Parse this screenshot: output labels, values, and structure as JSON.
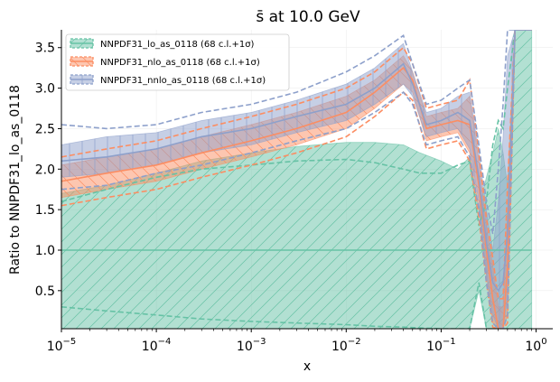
{
  "chart_data": {
    "type": "area",
    "title": "s̄ at 10.0 GeV",
    "xlabel": "x",
    "ylabel": "Ratio to NNPDF31_lo_as_0118",
    "xscale": "log",
    "xlim": [
      1e-05,
      1.5
    ],
    "ylim": [
      0.03,
      3.72
    ],
    "grid": true,
    "legend_position": "top-left",
    "x_ticks": [
      {
        "value": 1e-05,
        "base": "10",
        "exp": "−5"
      },
      {
        "value": 0.0001,
        "base": "10",
        "exp": "−4"
      },
      {
        "value": 0.001,
        "base": "10",
        "exp": "−3"
      },
      {
        "value": 0.01,
        "base": "10",
        "exp": "−2"
      },
      {
        "value": 0.1,
        "base": "10",
        "exp": "−1"
      },
      {
        "value": 1,
        "base": "10",
        "exp": "0"
      }
    ],
    "y_ticks": [
      {
        "value": 0.5,
        "label": "0.5"
      },
      {
        "value": 1.0,
        "label": "1.0"
      },
      {
        "value": 1.5,
        "label": "1.5"
      },
      {
        "value": 2.0,
        "label": "2.0"
      },
      {
        "value": 2.5,
        "label": "2.5"
      },
      {
        "value": 3.0,
        "label": "3.0"
      },
      {
        "value": 3.5,
        "label": "3.5"
      }
    ],
    "series": [
      {
        "name": "NNPDF31_lo_as_0118 (68 c.l.+1σ)",
        "color": "#66c2a5",
        "hatch": "/",
        "x": [
          1e-05,
          3e-05,
          0.0001,
          0.0003,
          0.001,
          0.003,
          0.01,
          0.02,
          0.04,
          0.06,
          0.1,
          0.15,
          0.2,
          0.25,
          0.3,
          0.35,
          0.4,
          0.45,
          0.5,
          0.6,
          0.7,
          0.8,
          0.9
        ],
        "central": [
          1.0,
          1.0,
          1.0,
          1.0,
          1.0,
          1.0,
          1.0,
          1.0,
          1.0,
          1.0,
          1.0,
          1.0,
          1.0,
          1.0,
          1.0,
          1.0,
          1.0,
          1.0,
          1.0,
          1.0,
          1.0,
          1.0,
          1.0
        ],
        "band_upper": [
          1.7,
          1.8,
          1.95,
          2.1,
          2.2,
          2.28,
          2.33,
          2.33,
          2.3,
          2.2,
          2.1,
          2.0,
          2.15,
          1.5,
          1.9,
          2.2,
          2.5,
          2.2,
          1.8,
          3.72,
          3.72,
          3.72,
          3.72
        ],
        "band_lower": [
          0.03,
          0.03,
          0.03,
          0.03,
          0.03,
          0.03,
          0.03,
          0.03,
          0.03,
          0.03,
          0.03,
          0.03,
          0.03,
          0.5,
          0.03,
          0.03,
          0.03,
          0.03,
          0.03,
          0.03,
          0.03,
          0.03,
          0.03
        ],
        "sigma_upper": [
          1.6,
          1.75,
          1.9,
          2.0,
          2.05,
          2.1,
          2.12,
          2.08,
          2.0,
          1.95,
          1.95,
          2.05,
          2.1,
          1.3,
          1.6,
          2.3,
          2.6,
          2.5,
          3.0,
          3.72,
          3.72,
          3.72,
          3.72
        ],
        "sigma_lower": [
          0.3,
          0.25,
          0.2,
          0.15,
          0.12,
          0.1,
          0.08,
          0.06,
          0.05,
          0.04,
          0.03,
          0.03,
          0.03,
          0.6,
          0.03,
          0.03,
          0.03,
          0.03,
          0.03,
          0.03,
          0.03,
          0.03,
          0.03
        ]
      },
      {
        "name": "NNPDF31_nlo_as_0118 (68 c.l.+1σ)",
        "color": "#fc8d62",
        "hatch": "\\",
        "x": [
          1e-05,
          3e-05,
          0.0001,
          0.0003,
          0.001,
          0.003,
          0.01,
          0.02,
          0.04,
          0.05,
          0.07,
          0.1,
          0.15,
          0.2,
          0.25,
          0.3,
          0.35,
          0.4,
          0.45,
          0.5,
          0.6,
          0.7,
          0.8,
          0.9
        ],
        "central": [
          1.85,
          1.95,
          2.05,
          2.2,
          2.35,
          2.5,
          2.7,
          2.95,
          3.25,
          3.1,
          2.5,
          2.55,
          2.6,
          2.55,
          1.8,
          1.0,
          0.4,
          0.03,
          0.03,
          0.8,
          3.72,
          3.72,
          3.72,
          3.72
        ],
        "band_upper": [
          2.05,
          2.15,
          2.25,
          2.4,
          2.55,
          2.7,
          2.9,
          3.1,
          3.4,
          3.2,
          2.65,
          2.7,
          2.75,
          2.9,
          2.1,
          1.3,
          0.8,
          0.3,
          0.3,
          1.5,
          3.72,
          3.72,
          3.72,
          3.72
        ],
        "band_lower": [
          1.65,
          1.75,
          1.85,
          2.0,
          2.15,
          2.3,
          2.5,
          2.75,
          3.05,
          2.95,
          2.35,
          2.4,
          2.45,
          2.2,
          1.5,
          0.7,
          0.1,
          0.03,
          0.03,
          0.2,
          3.72,
          3.72,
          3.72,
          3.72
        ],
        "sigma_upper": [
          2.15,
          2.25,
          2.35,
          2.5,
          2.65,
          2.8,
          3.0,
          3.2,
          3.5,
          3.3,
          2.75,
          2.8,
          2.85,
          3.1,
          2.2,
          1.4,
          0.9,
          0.4,
          0.4,
          1.8,
          3.72,
          3.72,
          3.72,
          3.72
        ],
        "sigma_lower": [
          1.55,
          1.65,
          1.75,
          1.9,
          2.05,
          2.2,
          2.4,
          2.65,
          2.95,
          2.85,
          2.25,
          2.3,
          2.35,
          2.1,
          1.4,
          0.6,
          0.05,
          0.03,
          0.03,
          0.1,
          3.72,
          3.72,
          3.72,
          3.72
        ]
      },
      {
        "name": "NNPDF31_nnlo_as_0118 (68 c.l.+1σ)",
        "color": "#8da0cb",
        "hatch": "|",
        "x": [
          1e-05,
          3e-05,
          0.0001,
          0.0003,
          0.001,
          0.003,
          0.01,
          0.02,
          0.04,
          0.05,
          0.07,
          0.1,
          0.15,
          0.2,
          0.25,
          0.3,
          0.35,
          0.4,
          0.45,
          0.5,
          0.6,
          0.7,
          0.8,
          0.9
        ],
        "central": [
          2.1,
          2.15,
          2.25,
          2.4,
          2.5,
          2.65,
          2.8,
          3.0,
          3.3,
          3.05,
          2.55,
          2.6,
          2.7,
          2.6,
          1.9,
          1.1,
          0.6,
          0.5,
          0.6,
          1.2,
          3.72,
          3.72,
          3.72,
          3.72
        ],
        "band_upper": [
          2.3,
          2.4,
          2.45,
          2.6,
          2.7,
          2.85,
          3.05,
          3.25,
          3.55,
          3.2,
          2.7,
          2.75,
          2.9,
          2.95,
          2.2,
          1.5,
          1.0,
          1.6,
          2.4,
          3.4,
          3.72,
          3.72,
          3.72,
          3.72
        ],
        "band_lower": [
          1.9,
          1.95,
          2.05,
          2.2,
          2.3,
          2.45,
          2.6,
          2.8,
          3.05,
          2.9,
          2.4,
          2.45,
          2.5,
          2.25,
          1.6,
          0.7,
          0.2,
          0.03,
          0.03,
          0.4,
          3.72,
          3.72,
          3.72,
          3.72
        ],
        "sigma_upper": [
          2.55,
          2.5,
          2.55,
          2.7,
          2.8,
          2.95,
          3.2,
          3.4,
          3.65,
          3.3,
          2.8,
          2.85,
          3.0,
          3.1,
          2.3,
          1.6,
          1.2,
          2.0,
          2.8,
          3.72,
          3.72,
          3.72,
          3.72,
          3.72
        ],
        "sigma_lower": [
          1.75,
          1.8,
          1.95,
          2.05,
          2.2,
          2.35,
          2.5,
          2.7,
          2.95,
          2.8,
          2.3,
          2.35,
          2.4,
          2.15,
          1.5,
          0.6,
          0.1,
          0.03,
          0.03,
          0.2,
          3.72,
          3.72,
          3.72,
          3.72
        ]
      }
    ]
  }
}
